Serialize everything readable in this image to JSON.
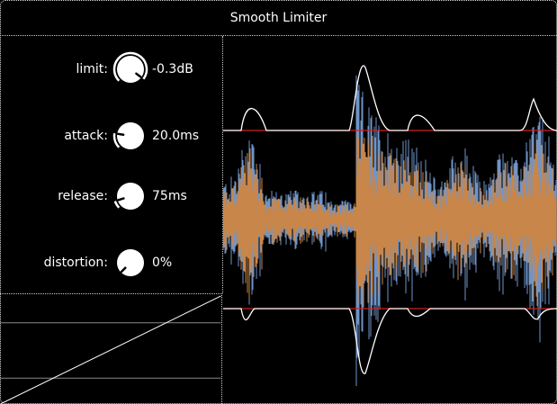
{
  "window": {
    "title": "Smooth Limiter"
  },
  "controls": [
    {
      "label": "limit:",
      "value": "-0.3dB",
      "level": 0.97
    },
    {
      "label": "attack:",
      "value": "20.0ms",
      "level": 0.2
    },
    {
      "label": "release:",
      "value": "75ms",
      "level": 0.1
    },
    {
      "label": "distortion:",
      "value": "0%",
      "level": 0.0
    }
  ],
  "colors": {
    "background": "#000000",
    "text": "#ffffff",
    "wave_input": "#6f95c9",
    "wave_output": "#c8864a",
    "limit_line": "#cc2222",
    "envelope": "#ffffff"
  },
  "icons": {
    "knob": "rotary-knob-icon"
  }
}
